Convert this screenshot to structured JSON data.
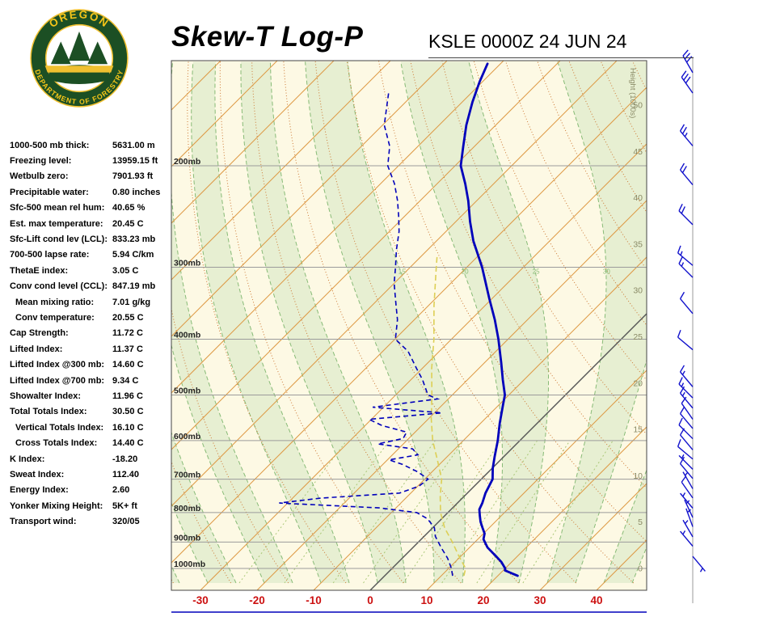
{
  "header": {
    "title": "Skew-T Log-P",
    "station": "KSLE 0000Z 24 JUN 24"
  },
  "logo": {
    "arc_top": "OREGON",
    "arc_bottom": "DEPARTMENT OF FORESTRY"
  },
  "indices": [
    {
      "label": "1000-500 mb thick:",
      "value": "5631.00 m",
      "indent": false
    },
    {
      "label": "Freezing level:",
      "value": "13959.15 ft",
      "indent": false
    },
    {
      "label": "Wetbulb zero:",
      "value": "7901.93 ft",
      "indent": false
    },
    {
      "label": "Precipitable water:",
      "value": "0.80 inches",
      "indent": false
    },
    {
      "label": "Sfc-500 mean rel hum:",
      "value": "40.65 %",
      "indent": false
    },
    {
      "label": "Est. max temperature:",
      "value": "20.45 C",
      "indent": false
    },
    {
      "label": "Sfc-Lift cond lev (LCL):",
      "value": "833.23 mb",
      "indent": false
    },
    {
      "label": "700-500 lapse rate:",
      "value": "5.94 C/km",
      "indent": false
    },
    {
      "label": "ThetaE index:",
      "value": "3.05 C",
      "indent": false
    },
    {
      "label": "Conv cond level (CCL):",
      "value": "847.19 mb",
      "indent": false
    },
    {
      "label": "Mean mixing ratio:",
      "value": "7.01 g/kg",
      "indent": true
    },
    {
      "label": "Conv temperature:",
      "value": "20.55 C",
      "indent": true
    },
    {
      "label": "Cap Strength:",
      "value": "11.72 C",
      "indent": false
    },
    {
      "label": "Lifted Index:",
      "value": "11.37 C",
      "indent": false
    },
    {
      "label": "Lifted Index @300 mb:",
      "value": "14.60 C",
      "indent": false
    },
    {
      "label": "Lifted Index @700 mb:",
      "value": "9.34 C",
      "indent": false
    },
    {
      "label": "Showalter Index:",
      "value": "11.96 C",
      "indent": false
    },
    {
      "label": "Total Totals Index:",
      "value": "30.50 C",
      "indent": false
    },
    {
      "label": "Vertical Totals Index:",
      "value": "16.10 C",
      "indent": true
    },
    {
      "label": "Cross Totals Index:",
      "value": "14.40 C",
      "indent": true
    },
    {
      "label": "K Index:",
      "value": "-18.20",
      "indent": false
    },
    {
      "label": "Sweat Index:",
      "value": "112.40",
      "indent": false
    },
    {
      "label": "Energy Index:",
      "value": "2.60",
      "indent": false
    },
    {
      "label": "Yonker Mixing Height:",
      "value": "5K+ ft",
      "indent": false
    },
    {
      "label": "Transport wind:",
      "value": "320/05",
      "indent": false
    }
  ],
  "chart_data": {
    "type": "line",
    "subtype": "skewt-logp-sounding",
    "title": "Skew-T Log-P",
    "station_time": "KSLE 0000Z 24 JUN 24",
    "pressure_levels": [
      200,
      300,
      400,
      500,
      600,
      700,
      800,
      900,
      1000
    ],
    "pressure_labels": [
      "200mb",
      "300mb",
      "400mb",
      "500mb",
      "600mb",
      "700mb",
      "800mb",
      "900mb",
      "1000mb"
    ],
    "temp_ticks": [
      -30,
      -20,
      -10,
      0,
      10,
      20,
      30,
      40
    ],
    "temp_axis_unit": "C",
    "height_ticks": [
      0,
      5,
      10,
      15,
      20,
      25,
      30,
      35,
      40,
      45,
      50
    ],
    "height_axis_label": "Height (1000s)",
    "isotherm_step_c": 10,
    "dry_adiabat_step_c": 10,
    "moist_adiabat_step_c": 5,
    "moist_adiabat_labels": [
      15,
      20,
      25,
      30
    ],
    "mixing_ratio_lines": [
      0.5,
      1,
      2,
      3,
      5,
      8,
      12,
      20
    ],
    "temperature_profile": [
      [
        1030,
        23.5
      ],
      [
        1008,
        20.3
      ],
      [
        1000,
        20.0
      ],
      [
        975,
        18.2
      ],
      [
        950,
        16.0
      ],
      [
        920,
        13.2
      ],
      [
        890,
        11.0
      ],
      [
        870,
        10.2
      ],
      [
        850,
        8.8
      ],
      [
        830,
        7.4
      ],
      [
        810,
        6.2
      ],
      [
        790,
        5.0
      ],
      [
        770,
        4.4
      ],
      [
        740,
        3.2
      ],
      [
        700,
        2.0
      ],
      [
        670,
        0.1
      ],
      [
        640,
        -1.6
      ],
      [
        600,
        -3.9
      ],
      [
        560,
        -6.6
      ],
      [
        520,
        -9.3
      ],
      [
        500,
        -10.7
      ],
      [
        470,
        -13.8
      ],
      [
        440,
        -17.0
      ],
      [
        400,
        -21.7
      ],
      [
        370,
        -25.8
      ],
      [
        340,
        -30.5
      ],
      [
        300,
        -37.3
      ],
      [
        270,
        -43.5
      ],
      [
        250,
        -47.5
      ],
      [
        230,
        -51.5
      ],
      [
        215,
        -55.0
      ],
      [
        200,
        -59.0
      ],
      [
        185,
        -62.0
      ],
      [
        170,
        -65.2
      ],
      [
        155,
        -68.2
      ],
      [
        143,
        -70.5
      ],
      [
        133,
        -72.3
      ]
    ],
    "dewpoint_profile": [
      [
        1030,
        12.0
      ],
      [
        1000,
        10.5
      ],
      [
        960,
        8.0
      ],
      [
        920,
        5.0
      ],
      [
        880,
        2.0
      ],
      [
        850,
        0.3
      ],
      [
        820,
        -2.5
      ],
      [
        800,
        -5.5
      ],
      [
        785,
        -13.0
      ],
      [
        770,
        -31.5
      ],
      [
        755,
        -25.0
      ],
      [
        740,
        -12.0
      ],
      [
        720,
        -9.8
      ],
      [
        700,
        -9.4
      ],
      [
        680,
        -12.5
      ],
      [
        660,
        -16.5
      ],
      [
        648,
        -19.7
      ],
      [
        635,
        -15.5
      ],
      [
        620,
        -17.5
      ],
      [
        608,
        -24.5
      ],
      [
        595,
        -21.0
      ],
      [
        580,
        -21.5
      ],
      [
        565,
        -27.0
      ],
      [
        551,
        -30.4
      ],
      [
        537,
        -18.7
      ],
      [
        525,
        -31.9
      ],
      [
        508,
        -21.9
      ],
      [
        500,
        -24.3
      ],
      [
        470,
        -28.0
      ],
      [
        449,
        -31.1
      ],
      [
        420,
        -35.5
      ],
      [
        400,
        -39.9
      ],
      [
        370,
        -43.0
      ],
      [
        350,
        -45.7
      ],
      [
        320,
        -50.0
      ],
      [
        300,
        -52.6
      ],
      [
        280,
        -55.5
      ],
      [
        260,
        -58.3
      ],
      [
        245,
        -61.0
      ],
      [
        230,
        -64.0
      ],
      [
        215,
        -67.5
      ],
      [
        200,
        -71.9
      ],
      [
        185,
        -75.0
      ],
      [
        170,
        -79.7
      ],
      [
        158,
        -82.5
      ],
      [
        148,
        -85.0
      ]
    ],
    "wetbulb_profile": [
      [
        1030,
        14.0
      ],
      [
        1000,
        13.0
      ],
      [
        950,
        9.5
      ],
      [
        900,
        6.0
      ],
      [
        850,
        2.1
      ],
      [
        800,
        -1.3
      ],
      [
        750,
        -4.2
      ],
      [
        700,
        -7.0
      ],
      [
        650,
        -11.0
      ],
      [
        600,
        -15.4
      ],
      [
        550,
        -19.5
      ],
      [
        500,
        -23.6
      ],
      [
        450,
        -28.3
      ],
      [
        400,
        -33.1
      ],
      [
        350,
        -39.0
      ],
      [
        300,
        -45.4
      ],
      [
        285,
        -47.5
      ]
    ],
    "wind_barbs": [
      {
        "kft": 53.5,
        "dir": 330,
        "spd": 30
      },
      {
        "kft": 51.3,
        "dir": 325,
        "spd": 30
      },
      {
        "kft": 45.6,
        "dir": 320,
        "spd": 25
      },
      {
        "kft": 41.4,
        "dir": 320,
        "spd": 20
      },
      {
        "kft": 37.1,
        "dir": 315,
        "spd": 20
      },
      {
        "kft": 32.7,
        "dir": 310,
        "spd": 15
      },
      {
        "kft": 31.4,
        "dir": 315,
        "spd": 15
      },
      {
        "kft": 27.5,
        "dir": 320,
        "spd": 10
      },
      {
        "kft": 23.6,
        "dir": 310,
        "spd": 10
      },
      {
        "kft": 19.6,
        "dir": 320,
        "spd": 15
      },
      {
        "kft": 18.4,
        "dir": 315,
        "spd": 15
      },
      {
        "kft": 17.3,
        "dir": 320,
        "spd": 15
      },
      {
        "kft": 16.1,
        "dir": 325,
        "spd": 10
      },
      {
        "kft": 15.1,
        "dir": 320,
        "spd": 10
      },
      {
        "kft": 14.0,
        "dir": 315,
        "spd": 10
      },
      {
        "kft": 12.8,
        "dir": 320,
        "spd": 10
      },
      {
        "kft": 11.8,
        "dir": 310,
        "spd": 10
      },
      {
        "kft": 10.7,
        "dir": 315,
        "spd": 5
      },
      {
        "kft": 9.7,
        "dir": 320,
        "spd": 10
      },
      {
        "kft": 8.6,
        "dir": 330,
        "spd": 5
      },
      {
        "kft": 7.6,
        "dir": 325,
        "spd": 10
      },
      {
        "kft": 6.5,
        "dir": 320,
        "spd": 5
      },
      {
        "kft": 5.5,
        "dir": 335,
        "spd": 5
      },
      {
        "kft": 4.5,
        "dir": 340,
        "spd": 5
      },
      {
        "kft": 3.4,
        "dir": 330,
        "spd": 5
      },
      {
        "kft": 2.4,
        "dir": 320,
        "spd": 5
      },
      {
        "kft": 1.3,
        "dir": 140,
        "spd": 5
      }
    ],
    "colors": {
      "chart_bg": "#fdf9e4",
      "band": "#e7efd2",
      "grid": "#9b9b9b",
      "isotherm": "#dd9944",
      "freezing_isotherm": "#555555",
      "dry_adiabat": "#cc7733",
      "moist_adiabat": "#88bb77",
      "mixing_ratio": "#aac878",
      "temperature": "#0000bb",
      "dewpoint": "#0000bb",
      "wetbulb": "#ddcf55",
      "axis_temp": "#cc1111",
      "pressure_label": "#222222",
      "height_label": "#8a8a66",
      "barb": "#1111cc",
      "frame": "#444444"
    }
  }
}
